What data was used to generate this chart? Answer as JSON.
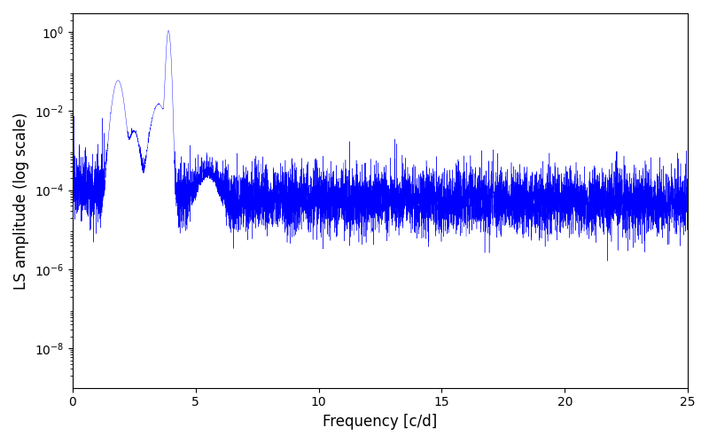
{
  "line_color": "#0000ff",
  "xlabel": "Frequency [c/d]",
  "ylabel": "LS amplitude (log scale)",
  "xlim": [
    0,
    25
  ],
  "ylim": [
    1e-09,
    3.0
  ],
  "background_color": "#ffffff",
  "fig_width": 8.0,
  "fig_height": 5.0,
  "dpi": 100,
  "seed": 12345,
  "n_points": 8000,
  "peak1_freq": 1.85,
  "peak1_amp": 0.06,
  "peak2_freq": 3.9,
  "peak2_amp": 1.1,
  "noise_floor_base": 3e-05,
  "noise_sigma": 1.2,
  "xlabel_fontsize": 12,
  "ylabel_fontsize": 12,
  "linewidth": 0.3
}
